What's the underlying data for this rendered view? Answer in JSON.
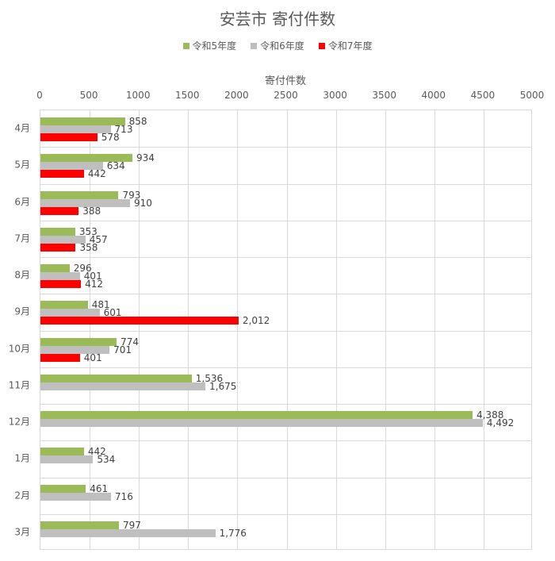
{
  "title": "安芸市 寄付件数",
  "legend": [
    {
      "label": "令和5年度",
      "color": "#9BBB59"
    },
    {
      "label": "令和6年度",
      "color": "#BFBFBF"
    },
    {
      "label": "令和7年度",
      "color": "#FF0000"
    }
  ],
  "axis": {
    "title": "寄付件数",
    "ticks": [
      "0",
      "500",
      "1000",
      "1500",
      "2000",
      "2500",
      "3000",
      "3500",
      "4000",
      "4500",
      "5000"
    ]
  },
  "chart_data": {
    "type": "bar",
    "orientation": "horizontal",
    "title": "安芸市 寄付件数",
    "xlabel": "寄付件数",
    "ylabel": "",
    "xlim": [
      0,
      5000
    ],
    "grid": true,
    "legend_position": "top",
    "categories": [
      "4月",
      "5月",
      "6月",
      "7月",
      "8月",
      "9月",
      "10月",
      "11月",
      "12月",
      "1月",
      "2月",
      "3月"
    ],
    "series": [
      {
        "name": "令和5年度",
        "color": "#9BBB59",
        "values": [
          858,
          934,
          793,
          353,
          296,
          481,
          774,
          1536,
          4388,
          442,
          461,
          797
        ]
      },
      {
        "name": "令和6年度",
        "color": "#BFBFBF",
        "values": [
          713,
          634,
          910,
          457,
          401,
          601,
          701,
          1675,
          4492,
          534,
          716,
          1776
        ]
      },
      {
        "name": "令和7年度",
        "color": "#FF0000",
        "values": [
          578,
          442,
          388,
          358,
          412,
          2012,
          401,
          null,
          null,
          null,
          null,
          null
        ]
      }
    ],
    "labels": [
      [
        "858",
        "713",
        "578"
      ],
      [
        "934",
        "634",
        "442"
      ],
      [
        "793",
        "910",
        "388"
      ],
      [
        "353",
        "457",
        "358"
      ],
      [
        "296",
        "401",
        "412"
      ],
      [
        "481",
        "601",
        "2,012"
      ],
      [
        "774",
        "701",
        "401"
      ],
      [
        "1,536",
        "1,675",
        ""
      ],
      [
        "4,388",
        "4,492",
        ""
      ],
      [
        "442",
        "534",
        ""
      ],
      [
        "461",
        "716",
        ""
      ],
      [
        "797",
        "1,776",
        ""
      ]
    ]
  }
}
